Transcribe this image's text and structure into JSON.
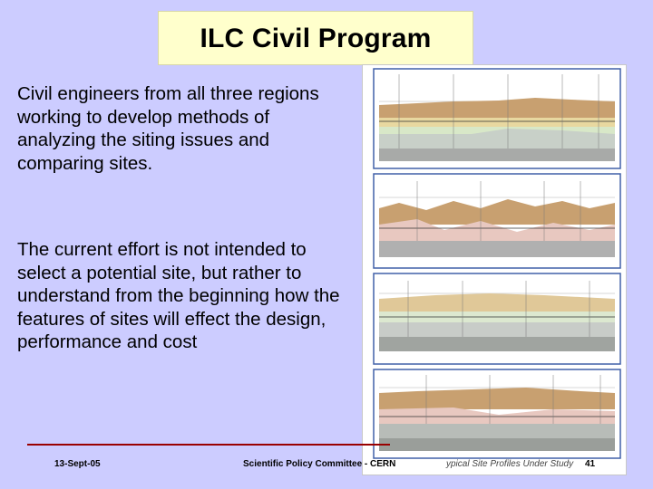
{
  "slide": {
    "title": "ILC Civil Program",
    "paragraphs": [
      "Civil engineers from all three regions working to develop methods of analyzing the siting issues and comparing sites.",
      "The current effort is not intended to select a potential site, but rather to understand from the beginning how the features of sites will effect the design, performance and cost"
    ]
  },
  "figure": {
    "caption": "ypical Site Profiles Under Study",
    "panel_count": 4
  },
  "footer": {
    "date": "13-Sept-05",
    "committee": "Scientific Policy Committee - CERN",
    "page": "41"
  },
  "colors": {
    "background": "#ccccff",
    "title_box": "#ffffcc",
    "footer_rule": "#990000",
    "panel_border": "#4060a8"
  }
}
